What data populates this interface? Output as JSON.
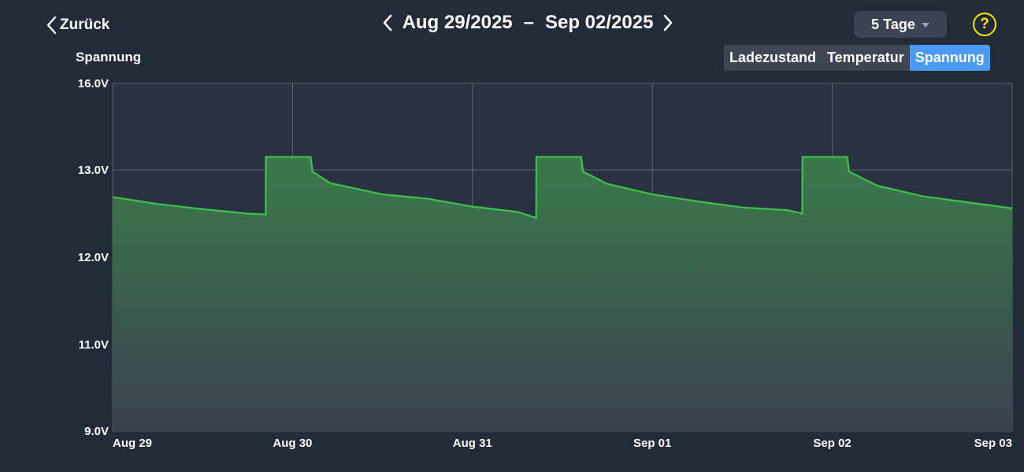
{
  "header": {
    "back_label": "Zurück",
    "range_start": "Aug 29/2025",
    "range_separator": "–",
    "range_end": "Sep 02/2025",
    "days_select_value": "5 Tage",
    "help_symbol": "?"
  },
  "chart_title": "Spannung",
  "tabs": [
    {
      "label": "Ladezustand",
      "active": false
    },
    {
      "label": "Temperatur",
      "active": false
    },
    {
      "label": "Spannung",
      "active": true
    }
  ],
  "colors": {
    "line": "#3ec24a",
    "fill_top": "#3a7a4a",
    "fill_bottom": "#3a4150",
    "grid": "#5f6670",
    "active_tab": "#4b9bf4",
    "help": "#ffe600"
  },
  "chart_data": {
    "type": "area",
    "title": "Spannung",
    "xlabel": "",
    "ylabel": "",
    "grid": true,
    "x_ticks": [
      "Aug 29",
      "Aug 30",
      "Aug 31",
      "Sep 01",
      "Sep 02",
      "Sep 03"
    ],
    "y_ticks": [
      "9.0V",
      "11.0V",
      "12.0V",
      "13.0V",
      "16.0V"
    ],
    "series": [
      {
        "points": [
          [
            "Aug 29 00:00",
            12.69
          ],
          [
            "Aug 29 06:00",
            12.61
          ],
          [
            "Aug 29 12:00",
            12.55
          ],
          [
            "Aug 29 18:00",
            12.5
          ],
          [
            "Aug 29 20:25",
            12.49
          ],
          [
            "Aug 29 20:26",
            13.45
          ],
          [
            "Aug 30 02:25",
            13.45
          ],
          [
            "Aug 30 02:40",
            12.98
          ],
          [
            "Aug 30 05:00",
            12.85
          ],
          [
            "Aug 30 12:00",
            12.72
          ],
          [
            "Aug 30 18:00",
            12.67
          ],
          [
            "Aug 31 00:00",
            12.58
          ],
          [
            "Aug 31 06:00",
            12.52
          ],
          [
            "Aug 31 08:30",
            12.45
          ],
          [
            "Aug 31 08:31",
            13.45
          ],
          [
            "Aug 31 14:30",
            13.45
          ],
          [
            "Aug 31 14:45",
            12.98
          ],
          [
            "Aug 31 18:00",
            12.84
          ],
          [
            "Sep 01 00:00",
            12.72
          ],
          [
            "Sep 01 06:00",
            12.64
          ],
          [
            "Sep 01 12:00",
            12.57
          ],
          [
            "Sep 01 18:00",
            12.54
          ],
          [
            "Sep 01 20:00",
            12.5
          ],
          [
            "Sep 01 20:01",
            13.45
          ],
          [
            "Sep 02 02:00",
            13.45
          ],
          [
            "Sep 02 02:15",
            12.98
          ],
          [
            "Sep 02 06:00",
            12.82
          ],
          [
            "Sep 02 12:00",
            12.7
          ],
          [
            "Sep 02 18:00",
            12.63
          ],
          [
            "Sep 03 00:00",
            12.56
          ]
        ]
      }
    ]
  }
}
